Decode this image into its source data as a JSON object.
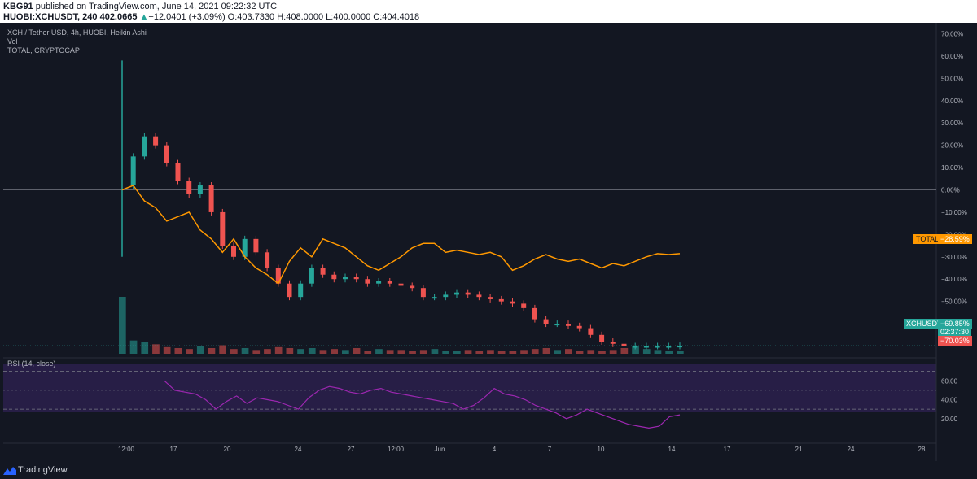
{
  "header": {
    "line1_user": "KBG91",
    "line1_rest": " published on TradingView.com, June 14, 2021 09:22:32 UTC",
    "line2_symbol": "HUOBI:XCHUSDT, 240 402.0665",
    "line2_change": "+12.0401 (+3.09%)",
    "line2_ohlc": "O:403.7330 H:408.0000 L:400.0000 C:404.4018",
    "up_arrow": "▲"
  },
  "legend": {
    "main": "XCH / Tether USD, 4h, HUOBI, Heikin Ashi",
    "vol": "Vol",
    "total": "TOTAL, CRYPTOCAP",
    "rsi": "RSI (14, close)"
  },
  "tags": {
    "total_name": "TOTAL",
    "total_value": "−28.59%",
    "xch_name": "XCHUSDT",
    "xch_value": "−69.85%",
    "xch_timer": "02:37:30",
    "xch_low": "−70.03%"
  },
  "colors": {
    "up": "#26a69a",
    "down": "#ef5350",
    "total_line": "#ff9800",
    "rsi_line": "#9c27b0",
    "rsi_band": "#2a1f4a"
  },
  "chart_data": {
    "type": "line",
    "price_axis": {
      "ticks": [
        "70.00%",
        "60.00%",
        "50.00%",
        "40.00%",
        "30.00%",
        "20.00%",
        "10.00%",
        "0.00%",
        "−10.00%",
        "−20.00%",
        "−30.00%",
        "−40.00%",
        "−50.00%",
        "−60.00%"
      ],
      "range": [
        -72,
        72
      ]
    },
    "time_axis": {
      "ticks": [
        "12:00",
        "17",
        "20",
        "24",
        "27",
        "12:00",
        "Jun",
        "4",
        "7",
        "10",
        "14",
        "17",
        "21",
        "24",
        "28"
      ]
    },
    "rsi_axis": {
      "ticks": [
        "60.00",
        "40.00",
        "20.00"
      ],
      "band": [
        30,
        70
      ],
      "midline": 50
    },
    "xch_series": {
      "name": "XCHUSDT",
      "x": [
        0,
        2,
        4,
        6,
        8,
        10,
        12,
        14,
        16,
        18,
        20,
        22,
        24,
        26,
        28,
        30,
        32,
        34,
        36,
        38,
        40,
        42,
        44,
        46,
        48,
        50,
        52,
        54,
        56,
        58,
        60,
        62,
        64,
        66,
        68,
        70,
        72,
        74,
        76,
        78,
        80,
        82,
        84,
        86,
        88,
        90,
        92,
        94,
        96,
        98,
        100
      ],
      "values": [
        2,
        15,
        24,
        20,
        12,
        4,
        -2,
        2,
        -10,
        -25,
        -30,
        -22,
        -28,
        -35,
        -42,
        -48,
        -42,
        -35,
        -38,
        -40,
        -39,
        -40,
        -42,
        -41,
        -42,
        -43,
        -44,
        -48,
        -48,
        -47,
        -46,
        -47,
        -48,
        -49,
        -50,
        -51,
        -53,
        -58,
        -60,
        -60,
        -61,
        -62,
        -65,
        -68,
        -69,
        -70,
        -70,
        -70,
        -70,
        -70,
        -69.85
      ]
    },
    "total_series": {
      "name": "TOTAL",
      "x": [
        0,
        2,
        4,
        6,
        8,
        10,
        12,
        14,
        16,
        18,
        20,
        22,
        24,
        26,
        28,
        30,
        32,
        34,
        36,
        38,
        40,
        42,
        44,
        46,
        48,
        50,
        52,
        54,
        56,
        58,
        60,
        62,
        64,
        66,
        68,
        70,
        72,
        74,
        76,
        78,
        80,
        82,
        84,
        86,
        88,
        90,
        92,
        94,
        96,
        98,
        100
      ],
      "values": [
        0,
        2,
        -5,
        -8,
        -14,
        -12,
        -10,
        -18,
        -22,
        -28,
        -22,
        -30,
        -35,
        -38,
        -42,
        -32,
        -26,
        -30,
        -22,
        -24,
        -26,
        -30,
        -34,
        -36,
        -33,
        -30,
        -26,
        -24,
        -24,
        -28,
        -27,
        -28,
        -29,
        -28,
        -30,
        -36,
        -34,
        -31,
        -29,
        -31,
        -32,
        -31,
        -33,
        -35,
        -33,
        -34,
        -32,
        -30,
        -28.59,
        -29,
        -28.59
      ]
    },
    "volume": {
      "values": [
        60,
        14,
        12,
        10,
        7,
        6,
        5,
        8,
        6,
        9,
        5,
        6,
        4,
        5,
        7,
        6,
        5,
        6,
        4,
        5,
        4,
        6,
        3,
        5,
        4,
        4,
        3,
        4,
        5,
        3,
        3,
        4,
        3,
        4,
        3,
        3,
        4,
        5,
        6,
        4,
        5,
        3,
        4,
        3,
        4,
        6,
        8,
        5,
        4,
        3,
        3
      ]
    },
    "rsi": {
      "name": "RSI (14, close)",
      "values": [
        60,
        50,
        48,
        46,
        40,
        30,
        38,
        44,
        36,
        42,
        40,
        38,
        34,
        30,
        42,
        50,
        54,
        52,
        48,
        46,
        50,
        52,
        48,
        46,
        44,
        42,
        40,
        38,
        36,
        30,
        34,
        42,
        52,
        46,
        44,
        40,
        34,
        30,
        26,
        20,
        24,
        30,
        26,
        22,
        18,
        14,
        12,
        10,
        12,
        22,
        24
      ]
    }
  }
}
